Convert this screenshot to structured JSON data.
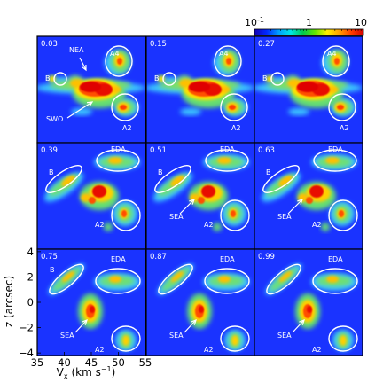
{
  "figure": {
    "colorbar": {
      "ticks": [
        {
          "value": 0.1,
          "label": "10",
          "sup": "-1"
        },
        {
          "value": 1,
          "label": "1",
          "sup": ""
        },
        {
          "value": 10,
          "label": "10",
          "sup": ""
        }
      ],
      "scale": "log",
      "range": [
        0.1,
        10
      ],
      "colors": [
        "#1400b4",
        "#0028ff",
        "#00a0ff",
        "#00e6e6",
        "#00c850",
        "#64e600",
        "#fff000",
        "#ffa000",
        "#ff3c00",
        "#d20000"
      ]
    },
    "axes": {
      "ylabel": "z (arcsec)",
      "xlabel_main": "V",
      "xlabel_sub": "x",
      "xlabel_rest": " (km s",
      "xlabel_sup": "−1",
      "xlabel_end": ")",
      "xticks": [
        {
          "value": 35,
          "label": "35"
        },
        {
          "value": 40,
          "label": "40"
        },
        {
          "value": 45,
          "label": "45"
        },
        {
          "value": 50,
          "label": "50"
        },
        {
          "value": 55,
          "label": "55"
        }
      ],
      "yticks": [
        {
          "value": 4,
          "label": "4"
        },
        {
          "value": 2,
          "label": "2"
        },
        {
          "value": 0,
          "label": "0"
        },
        {
          "value": -2,
          "label": "−2"
        },
        {
          "value": -4,
          "label": "−4"
        }
      ],
      "xlim": [
        35,
        55
      ],
      "ylim": [
        -4.2,
        4.2
      ]
    },
    "background_color": "#1a33ff",
    "panels": [
      {
        "label": "0.03",
        "annotations": [
          {
            "text": "NEA"
          },
          {
            "text": "A4"
          },
          {
            "text": "B"
          },
          {
            "text": "SWO"
          },
          {
            "text": "A2"
          }
        ]
      },
      {
        "label": "0.15",
        "annotations": [
          {
            "text": "A4"
          },
          {
            "text": "B"
          },
          {
            "text": "A2"
          }
        ]
      },
      {
        "label": "0.27",
        "annotations": [
          {
            "text": "A4"
          },
          {
            "text": "B"
          },
          {
            "text": "A2"
          }
        ]
      },
      {
        "label": "0.39",
        "annotations": [
          {
            "text": "EDA"
          },
          {
            "text": "B"
          },
          {
            "text": "A2"
          }
        ]
      },
      {
        "label": "0.51",
        "annotations": [
          {
            "text": "EDA"
          },
          {
            "text": "B"
          },
          {
            "text": "SEA"
          },
          {
            "text": "A2"
          }
        ]
      },
      {
        "label": "0.63",
        "annotations": [
          {
            "text": "EDA"
          },
          {
            "text": "B"
          },
          {
            "text": "SEA"
          },
          {
            "text": "A2"
          }
        ]
      },
      {
        "label": "0.75",
        "annotations": [
          {
            "text": "EDA"
          },
          {
            "text": "B"
          },
          {
            "text": "SEA"
          },
          {
            "text": "A2"
          }
        ]
      },
      {
        "label": "0.87",
        "annotations": [
          {
            "text": "EDA"
          },
          {
            "text": "SEA"
          },
          {
            "text": "A2"
          }
        ]
      },
      {
        "label": "0.99",
        "annotations": [
          {
            "text": "EDA"
          },
          {
            "text": "SEA"
          },
          {
            "text": "A2"
          }
        ]
      }
    ]
  },
  "chart_data": {
    "type": "heatmap",
    "title": "",
    "xlabel": "Vx (km s−1)",
    "ylabel": "z (arcsec)",
    "xlim": [
      35,
      55
    ],
    "ylim": [
      -4.2,
      4.2
    ],
    "colorbar_range": [
      0.1,
      10
    ],
    "colorbar_scale": "log",
    "colorbar_ticks": [
      "10^-1",
      "1",
      "10"
    ],
    "grid": false,
    "panel_labels": [
      "0.03",
      "0.15",
      "0.27",
      "0.39",
      "0.51",
      "0.63",
      "0.75",
      "0.87",
      "0.99"
    ]
  }
}
